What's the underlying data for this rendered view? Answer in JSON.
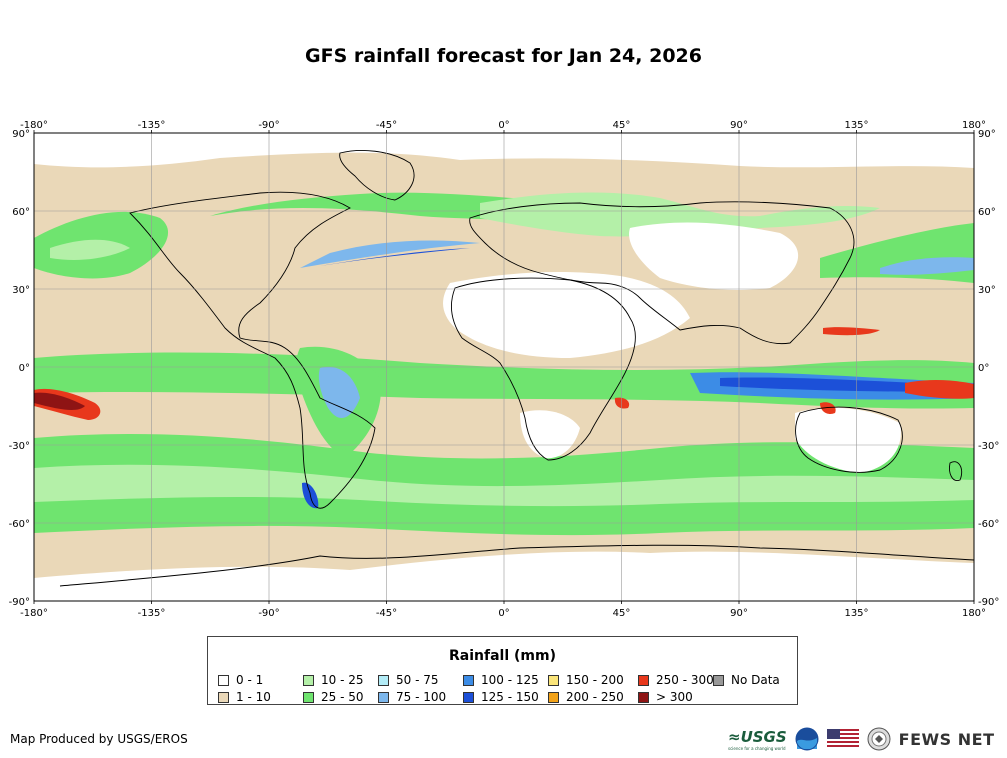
{
  "title": "GFS rainfall forecast for Jan 24, 2026",
  "lon_ticks": [
    "-180°",
    "-135°",
    "-90°",
    "-45°",
    "0°",
    "45°",
    "90°",
    "135°",
    "180°"
  ],
  "lat_ticks": [
    "90°",
    "60°",
    "30°",
    "0°",
    "-30°",
    "-60°",
    "-90°"
  ],
  "legend": {
    "title": "Rainfall (mm)",
    "items": [
      {
        "label": "0 - 1",
        "color": "#ffffff"
      },
      {
        "label": "1 - 10",
        "color": "#ead8b8"
      },
      {
        "label": "10 - 25",
        "color": "#b4f0a8"
      },
      {
        "label": "25 - 50",
        "color": "#6fe46f"
      },
      {
        "label": "50 - 75",
        "color": "#b3ecf7"
      },
      {
        "label": "75 - 100",
        "color": "#7db7ec"
      },
      {
        "label": "100 - 125",
        "color": "#3c8ce6"
      },
      {
        "label": "125 - 150",
        "color": "#1c50d8"
      },
      {
        "label": "150 - 200",
        "color": "#fbe57a"
      },
      {
        "label": "200 - 250",
        "color": "#f2a218"
      },
      {
        "label": "250 - 300",
        "color": "#e8381c"
      },
      {
        "label": "> 300",
        "color": "#8e1414"
      },
      {
        "label": "No Data",
        "color": "#999999"
      }
    ]
  },
  "credit": "Map Produced by USGS/EROS",
  "logos": {
    "usgs": "≈USGS",
    "usgs_tagline": "science for a changing world",
    "fews": "FEWS NET"
  }
}
